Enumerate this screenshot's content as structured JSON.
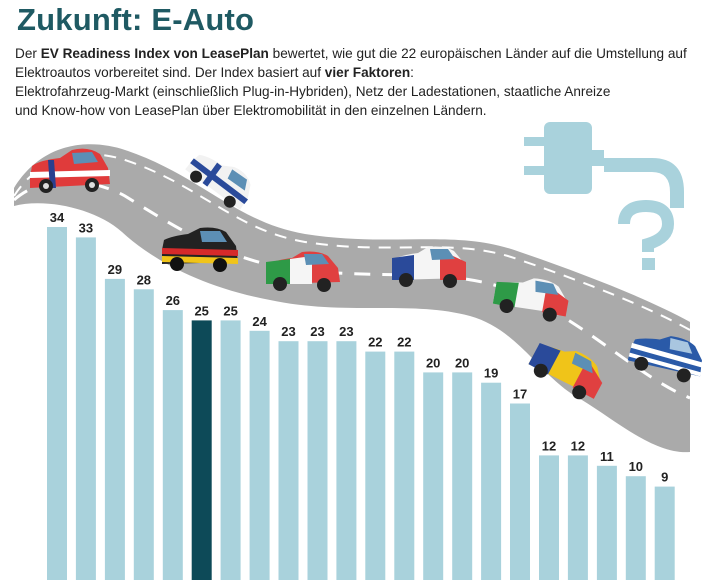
{
  "title": "Zukunft: E-Auto",
  "intro": {
    "p1": "Der ",
    "b1": "EV Readiness Index von LeasePlan",
    "p2": " bewertet, wie gut die 22 europäischen Länder auf die Umstellung auf  Elektroautos vorbereitet sind. Der Index basiert auf ",
    "b2": "vier Faktoren",
    "p3": ":",
    "line3": "Elektrofahrzeug-Markt (einschließlich Plug-in-Hybriden), Netz der Ladestationen, staatliche Anreize",
    "line4": "und Know-how von LeasePlan über Elektromobilität in den einzelnen Ländern."
  },
  "colors": {
    "bar": "#a9d2dc",
    "highlight": "#0d4a58",
    "road": "#a9a9a9",
    "plug": "#a9d2dc"
  },
  "decorations": {
    "plug_icon": "plug-icon",
    "question_mark_icon": "question-mark-icon",
    "road_icon": "road-icon",
    "car_icons": [
      "car-norway-icon",
      "car-finland-icon",
      "car-germany-icon",
      "car-italy-icon",
      "car-france-icon",
      "car-italy-icon",
      "car-belgium-icon",
      "car-greece-icon"
    ]
  },
  "chart_data": {
    "type": "bar",
    "values": [
      34,
      33,
      29,
      28,
      26,
      25,
      25,
      24,
      23,
      23,
      23,
      22,
      22,
      20,
      20,
      19,
      17,
      12,
      12,
      11,
      10,
      9
    ],
    "highlight_index": 5,
    "ylim": [
      0,
      34
    ]
  }
}
